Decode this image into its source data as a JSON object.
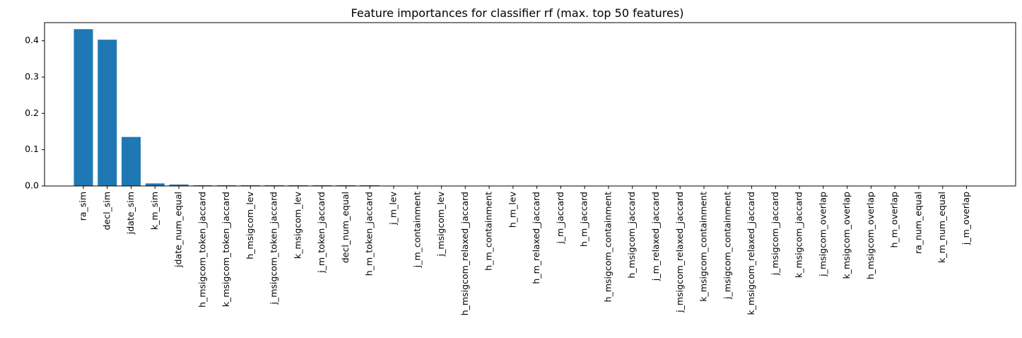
{
  "chart_data": {
    "type": "bar",
    "title": "Feature importances for classifier rf (max. top 50 features)",
    "xlabel": "",
    "ylabel": "",
    "ylim": [
      0,
      0.45
    ],
    "yticks": [
      "0.0",
      "0.1",
      "0.2",
      "0.3",
      "0.4"
    ],
    "grid": false,
    "bar_color": "#1f77b4",
    "categories": [
      "ra_sim",
      "decl_sim",
      "jdate_sim",
      "k_m_sim",
      "jdate_num_equal",
      "h_msigcom_token_jaccard",
      "k_msigcom_token_jaccard",
      "h_msigcom_lev",
      "j_msigcom_token_jaccard",
      "k_msigcom_lev",
      "j_m_token_jaccard",
      "decl_num_equal",
      "h_m_token_jaccard",
      "j_m_lev",
      "j_m_containment",
      "j_msigcom_lev",
      "h_msigcom_relaxed_jaccard",
      "h_m_containment",
      "h_m_lev",
      "h_m_relaxed_jaccard",
      "j_m_jaccard",
      "h_m_jaccard",
      "h_msigcom_containment",
      "h_msigcom_jaccard",
      "j_m_relaxed_jaccard",
      "j_msigcom_relaxed_jaccard",
      "k_msigcom_containment",
      "j_msigcom_containment",
      "k_msigcom_relaxed_jaccard",
      "j_msigcom_jaccard",
      "k_msigcom_jaccard",
      "j_msigcom_overlap",
      "k_msigcom_overlap",
      "h_msigcom_overlap",
      "h_m_overlap",
      "ra_num_equal",
      "k_m_num_equal",
      "j_m_overlap"
    ],
    "values": [
      0.432,
      0.403,
      0.135,
      0.007,
      0.004,
      0.002,
      0.002,
      0.002,
      0.002,
      0.002,
      0.002,
      0.002,
      0.002,
      0.001,
      0.0004,
      0.0003,
      0.0003,
      0.0002,
      0.0002,
      0.0002,
      0.0002,
      0.0002,
      0.0001,
      0.0001,
      0.0001,
      0.0001,
      0.0001,
      0.0001,
      0.0001,
      0.0001,
      0.0001,
      0.0,
      0.0,
      0.0,
      0.0,
      0.0,
      0.0,
      0.0
    ]
  }
}
